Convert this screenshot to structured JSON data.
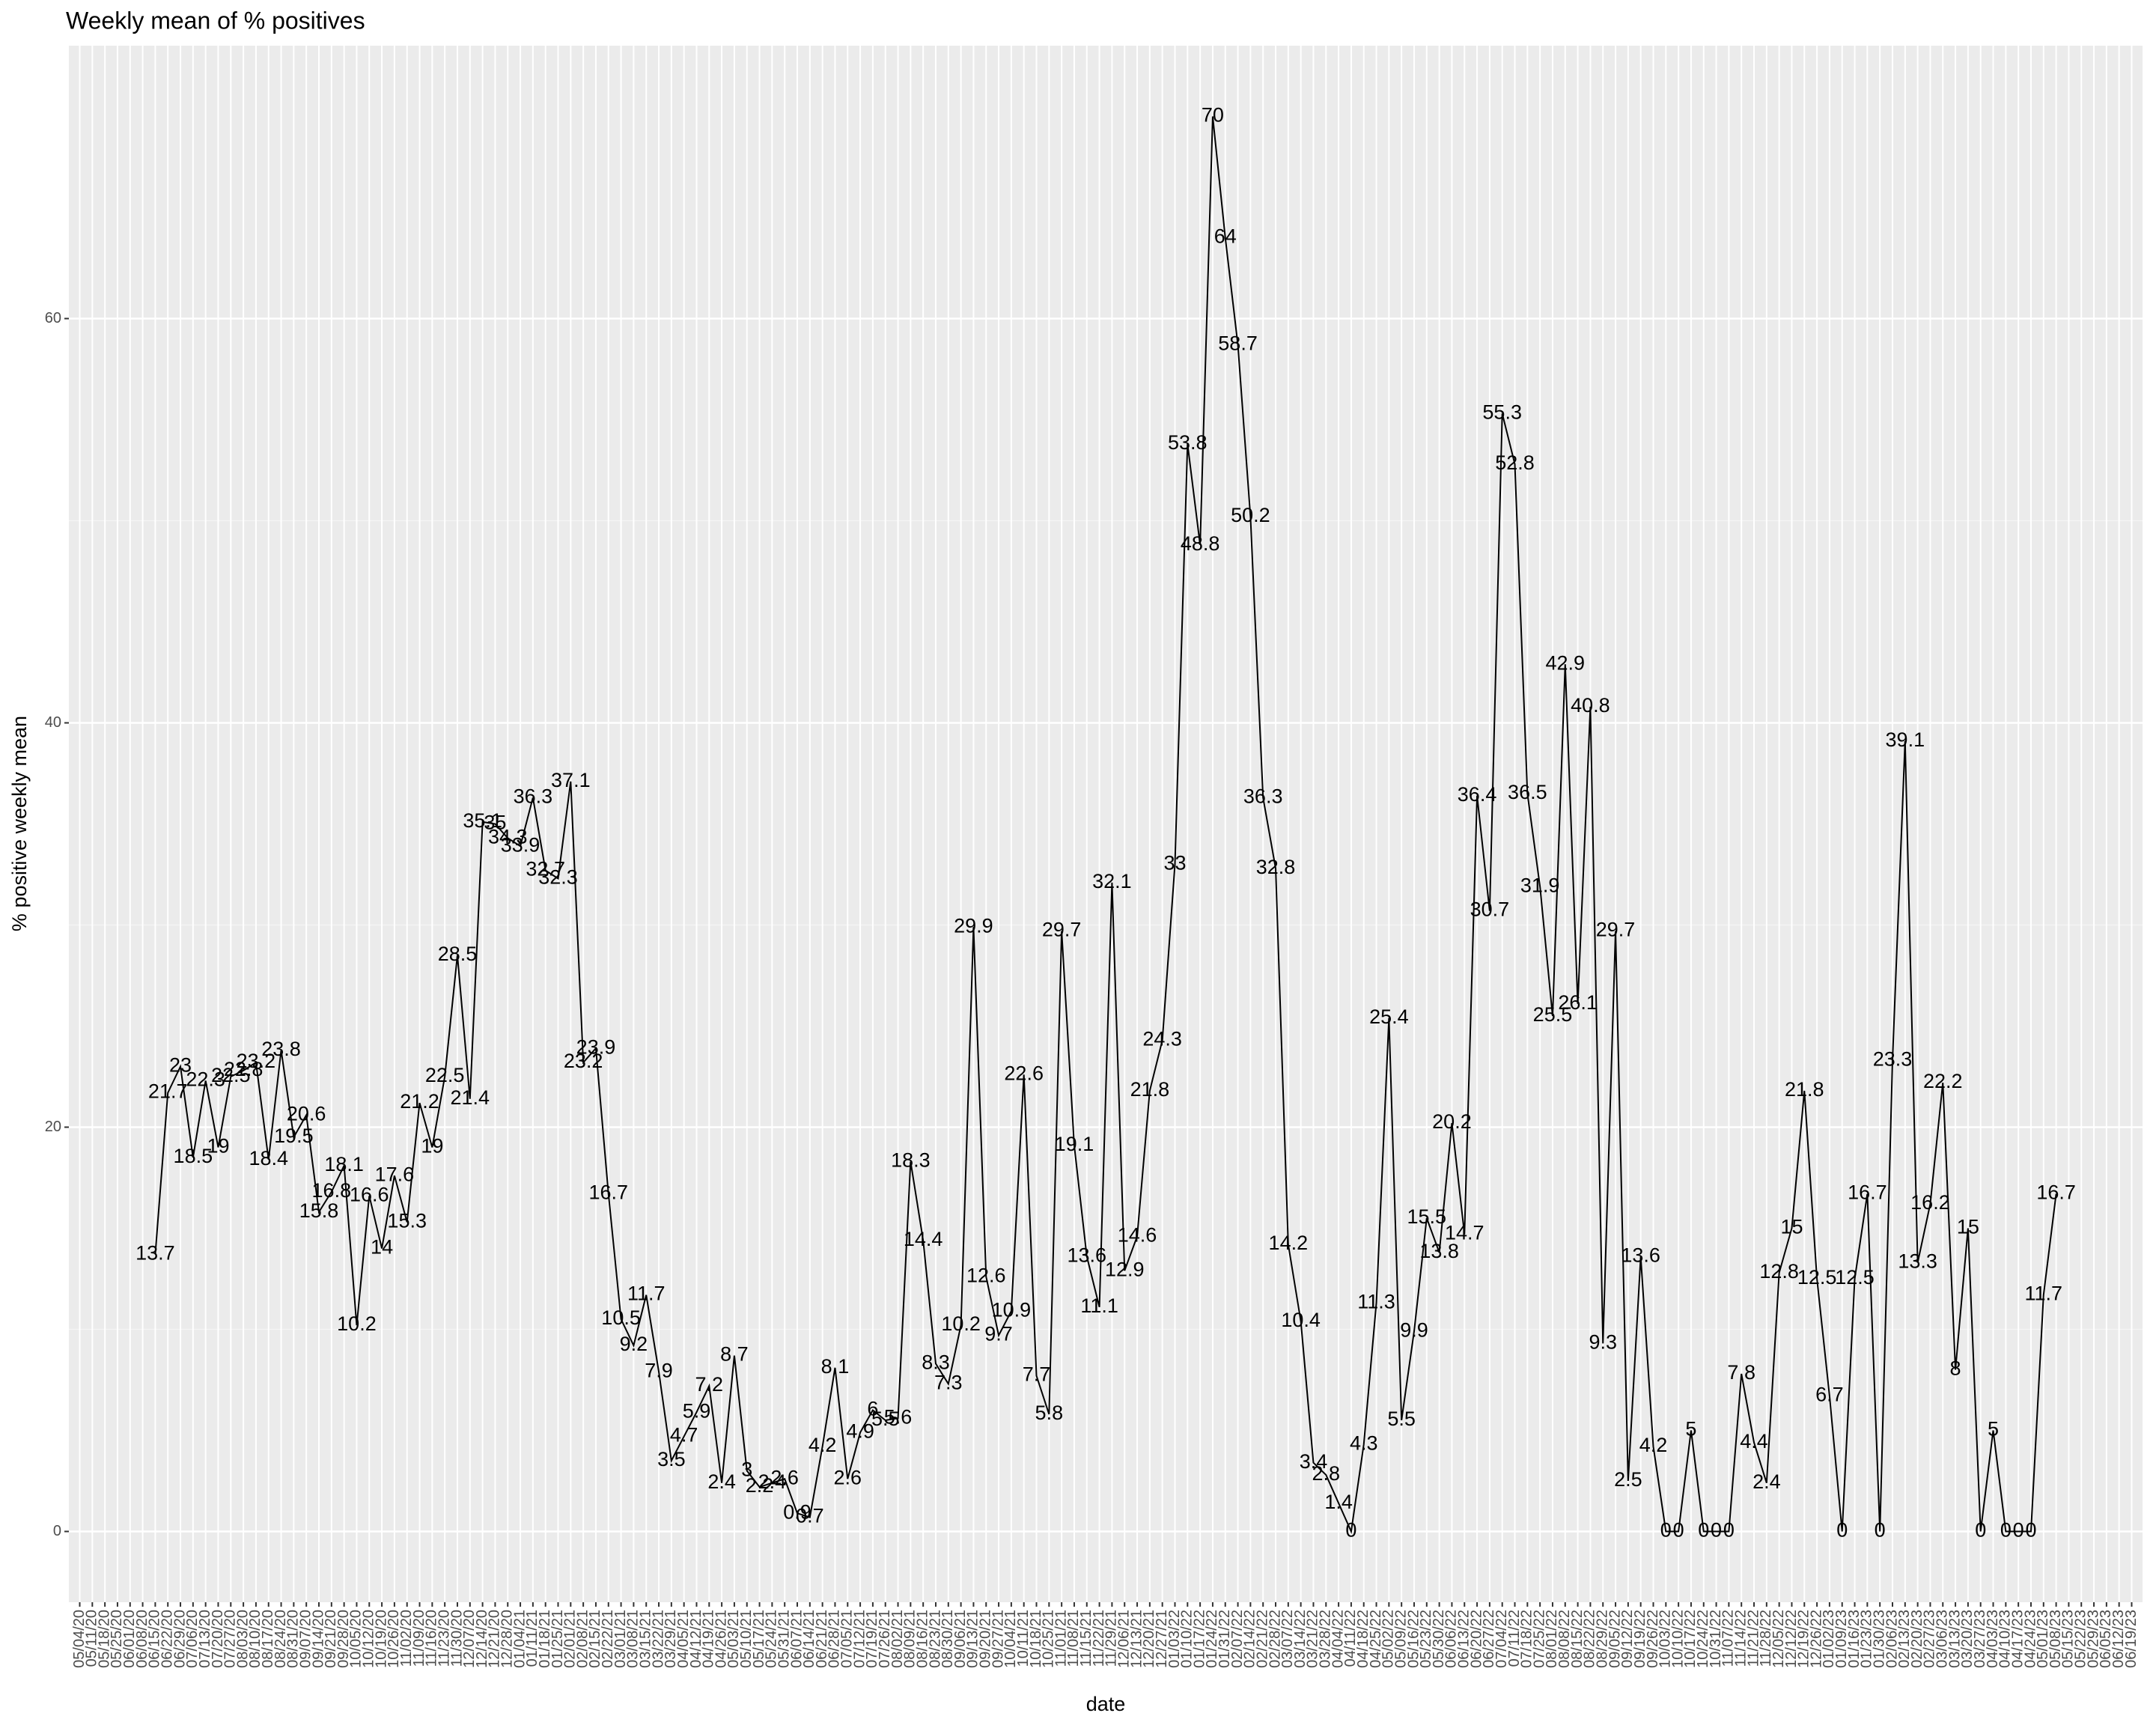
{
  "chart_data": {
    "type": "line",
    "title": "Weekly mean of % positives",
    "x_label": "date",
    "y_label": "% positive weekly mean",
    "categories": [
      "05/04/20",
      "05/11/20",
      "05/18/20",
      "05/25/20",
      "06/01/20",
      "06/08/20",
      "06/15/20",
      "06/22/20",
      "06/29/20",
      "07/06/20",
      "07/13/20",
      "07/20/20",
      "07/27/20",
      "08/03/20",
      "08/10/20",
      "08/17/20",
      "08/24/20",
      "08/31/20",
      "09/07/20",
      "09/14/20",
      "09/21/20",
      "09/28/20",
      "10/05/20",
      "10/12/20",
      "10/19/20",
      "10/26/20",
      "11/02/20",
      "11/09/20",
      "11/16/20",
      "11/23/20",
      "11/30/20",
      "12/07/20",
      "12/14/20",
      "12/21/20",
      "12/28/20",
      "01/04/21",
      "01/11/21",
      "01/18/21",
      "01/25/21",
      "02/01/21",
      "02/08/21",
      "02/15/21",
      "02/22/21",
      "03/01/21",
      "03/08/21",
      "03/15/21",
      "03/22/21",
      "03/29/21",
      "04/05/21",
      "04/12/21",
      "04/19/21",
      "04/26/21",
      "05/03/21",
      "05/10/21",
      "05/17/21",
      "05/24/21",
      "05/31/21",
      "06/07/21",
      "06/14/21",
      "06/21/21",
      "06/28/21",
      "07/05/21",
      "07/12/21",
      "07/19/21",
      "07/26/21",
      "08/02/21",
      "08/09/21",
      "08/16/21",
      "08/23/21",
      "08/30/21",
      "09/06/21",
      "09/13/21",
      "09/20/21",
      "09/27/21",
      "10/04/21",
      "10/11/21",
      "10/18/21",
      "10/25/21",
      "11/01/21",
      "11/08/21",
      "11/15/21",
      "11/22/21",
      "11/29/21",
      "12/06/21",
      "12/13/21",
      "12/20/21",
      "12/27/21",
      "01/03/22",
      "01/10/22",
      "01/17/22",
      "01/24/22",
      "01/31/22",
      "02/07/22",
      "02/14/22",
      "02/21/22",
      "02/28/22",
      "03/07/22",
      "03/14/22",
      "03/21/22",
      "03/28/22",
      "04/04/22",
      "04/11/22",
      "04/18/22",
      "04/25/22",
      "05/02/22",
      "05/09/22",
      "05/16/22",
      "05/23/22",
      "05/30/22",
      "06/06/22",
      "06/13/22",
      "06/20/22",
      "06/27/22",
      "07/04/22",
      "07/11/22",
      "07/18/22",
      "07/25/22",
      "08/01/22",
      "08/08/22",
      "08/15/22",
      "08/22/22",
      "08/29/22",
      "09/05/22",
      "09/12/22",
      "09/19/22",
      "09/26/22",
      "10/03/22",
      "10/10/22",
      "10/17/22",
      "10/24/22",
      "10/31/22",
      "11/07/22",
      "11/14/22",
      "11/21/22",
      "11/28/22",
      "12/05/22",
      "12/12/22",
      "12/19/22",
      "12/26/22",
      "01/02/23",
      "01/09/23",
      "01/16/23",
      "01/23/23",
      "01/30/23",
      "02/06/23",
      "02/13/23",
      "02/20/23",
      "02/27/23",
      "03/06/23",
      "03/13/23",
      "03/20/23",
      "03/27/23",
      "04/03/23",
      "04/10/23",
      "04/17/23",
      "04/24/23",
      "05/01/23",
      "05/08/23",
      "05/15/23",
      "05/22/23",
      "05/29/23",
      "06/05/23",
      "06/12/23",
      "06/19/23"
    ],
    "values": [
      null,
      null,
      null,
      null,
      null,
      null,
      13.7,
      21.7,
      23,
      18.5,
      22.3,
      19,
      22.5,
      22.8,
      23.2,
      18.4,
      23.8,
      19.5,
      20.6,
      15.8,
      16.8,
      18.1,
      10.2,
      16.6,
      14,
      17.6,
      15.3,
      21.2,
      19,
      22.5,
      28.5,
      21.4,
      35.1,
      35,
      34.3,
      33.9,
      36.3,
      32.7,
      32.3,
      37.1,
      23.2,
      23.9,
      16.7,
      10.5,
      9.2,
      11.7,
      7.9,
      3.5,
      4.7,
      5.9,
      7.2,
      2.4,
      8.7,
      3,
      2.2,
      2.4,
      2.6,
      0.9,
      0.7,
      4.2,
      8.1,
      2.6,
      4.9,
      6,
      5.5,
      5.6,
      18.3,
      14.4,
      8.3,
      7.3,
      10.2,
      29.9,
      12.6,
      9.7,
      10.9,
      22.6,
      7.7,
      5.8,
      29.7,
      19.1,
      13.6,
      11.1,
      32.1,
      12.9,
      14.6,
      21.8,
      24.3,
      33,
      53.8,
      48.8,
      70,
      64,
      58.7,
      50.2,
      36.3,
      32.8,
      14.2,
      10.4,
      3.4,
      2.8,
      1.4,
      0,
      4.3,
      11.3,
      25.4,
      5.5,
      9.9,
      15.5,
      13.8,
      20.2,
      14.7,
      36.4,
      30.7,
      55.3,
      52.8,
      36.5,
      31.9,
      25.5,
      42.9,
      26.1,
      40.8,
      9.3,
      29.7,
      2.5,
      13.6,
      4.2,
      0,
      0,
      5,
      0,
      0,
      0,
      7.8,
      4.4,
      2.4,
      12.8,
      15,
      21.8,
      12.5,
      6.7,
      0,
      12.5,
      16.7,
      0,
      23.3,
      39.1,
      13.3,
      16.2,
      22.2,
      8,
      15,
      0,
      5,
      0,
      0,
      0,
      11.7,
      16.7,
      null,
      null,
      null,
      null,
      null,
      null
    ],
    "color": "#000000",
    "ylim": [
      -3.5,
      73.5
    ],
    "yticks": [
      0,
      20,
      40,
      60
    ],
    "grid": true
  }
}
